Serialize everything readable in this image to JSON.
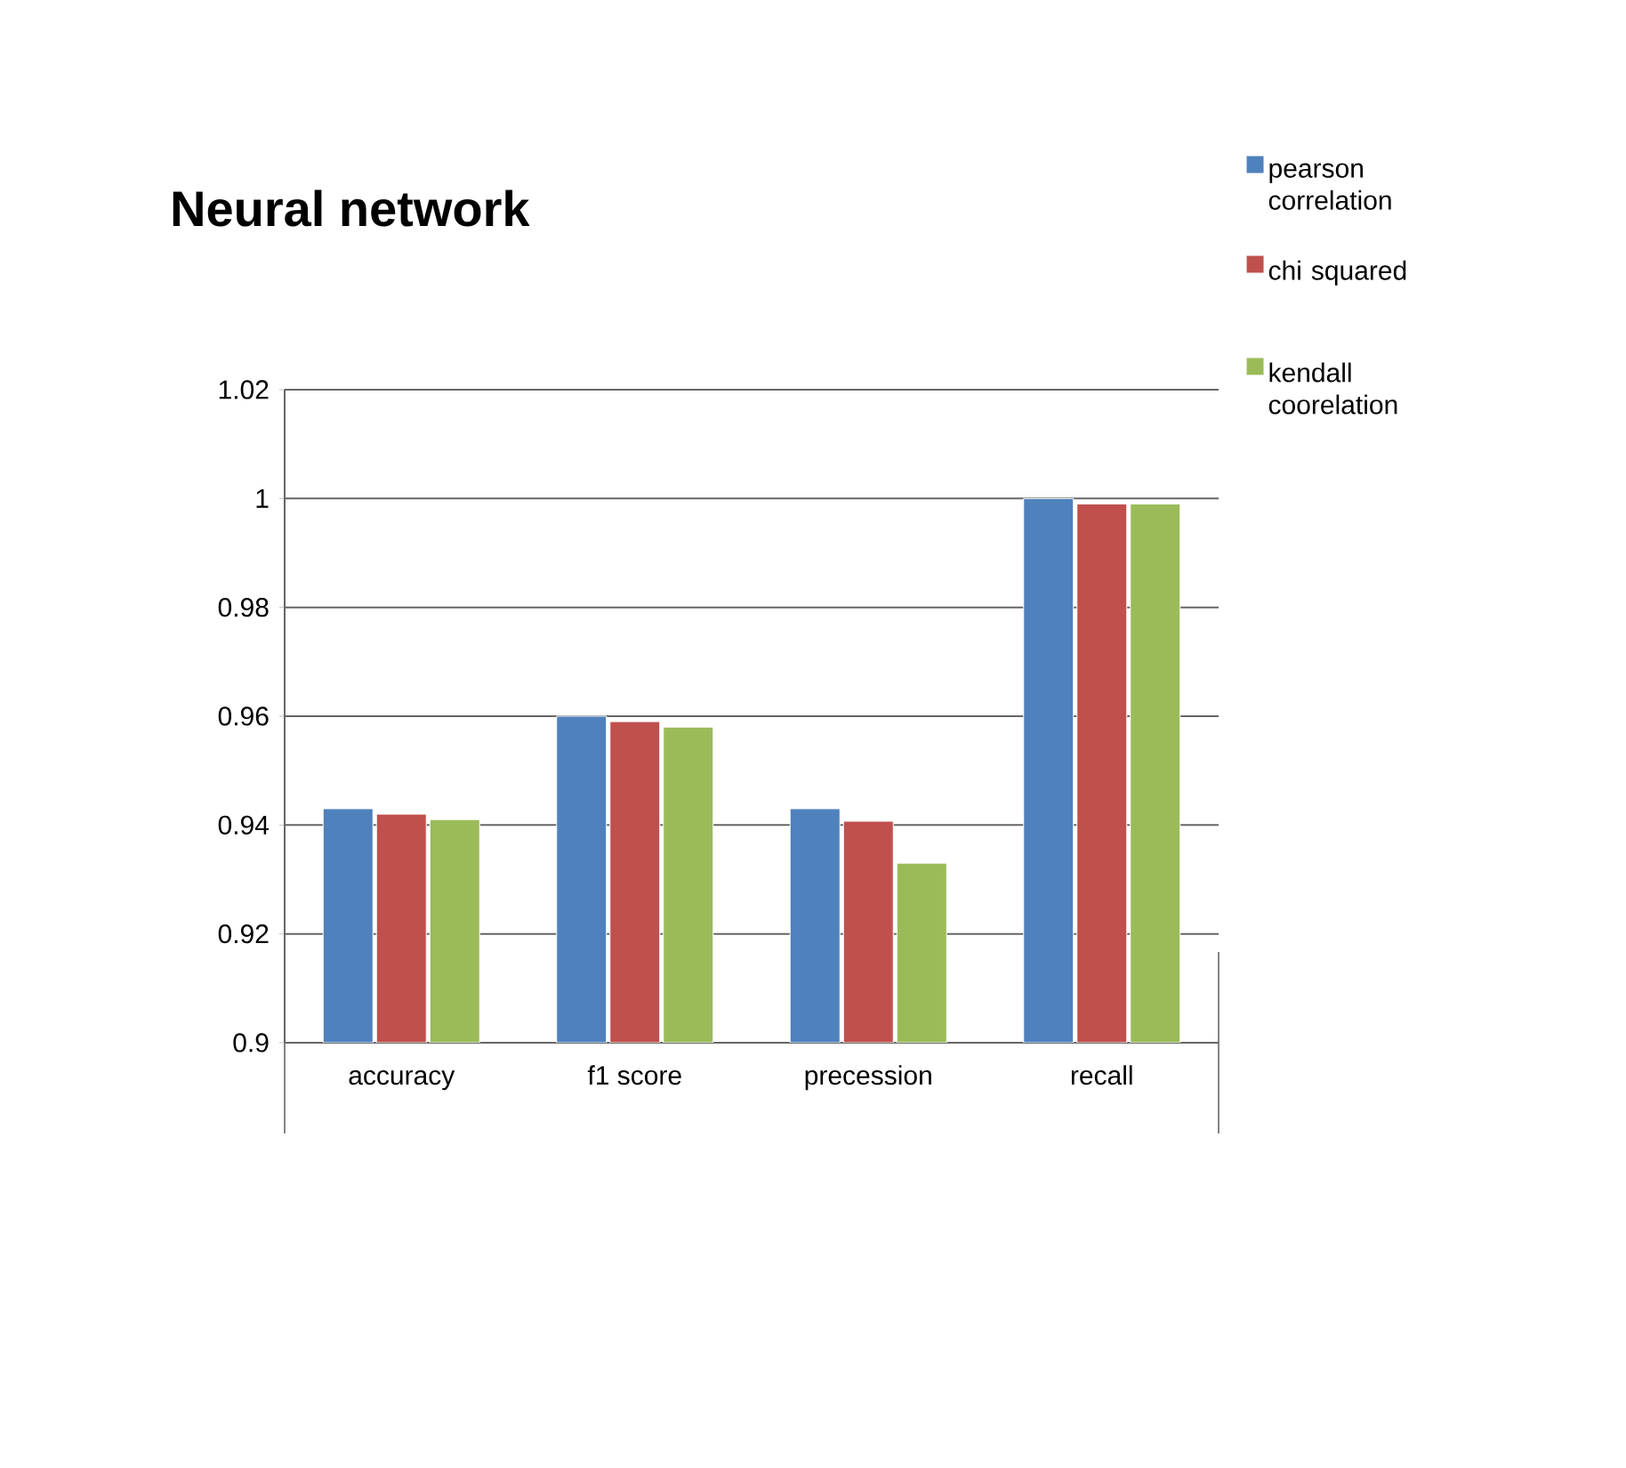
{
  "chart_data": {
    "type": "bar",
    "title": "Neural network",
    "categories": [
      "accuracy",
      "f1 score",
      "precession",
      "recall"
    ],
    "series": [
      {
        "name": "pearson correlation",
        "color": "#4f81bd",
        "values": [
          0.943,
          0.96,
          0.943,
          1.0
        ]
      },
      {
        "name": "chi squared",
        "color": "#c0504d",
        "values": [
          0.942,
          0.959,
          0.9407,
          0.999
        ]
      },
      {
        "name": "kendall coorelation",
        "color": "#9bbb59",
        "values": [
          0.941,
          0.958,
          0.933,
          0.999
        ]
      }
    ],
    "ylim": [
      0.9,
      1.02
    ],
    "yticks": [
      0.9,
      0.92,
      0.94,
      0.96,
      0.98,
      1,
      1.02
    ],
    "grid": "y",
    "legend": "right"
  }
}
